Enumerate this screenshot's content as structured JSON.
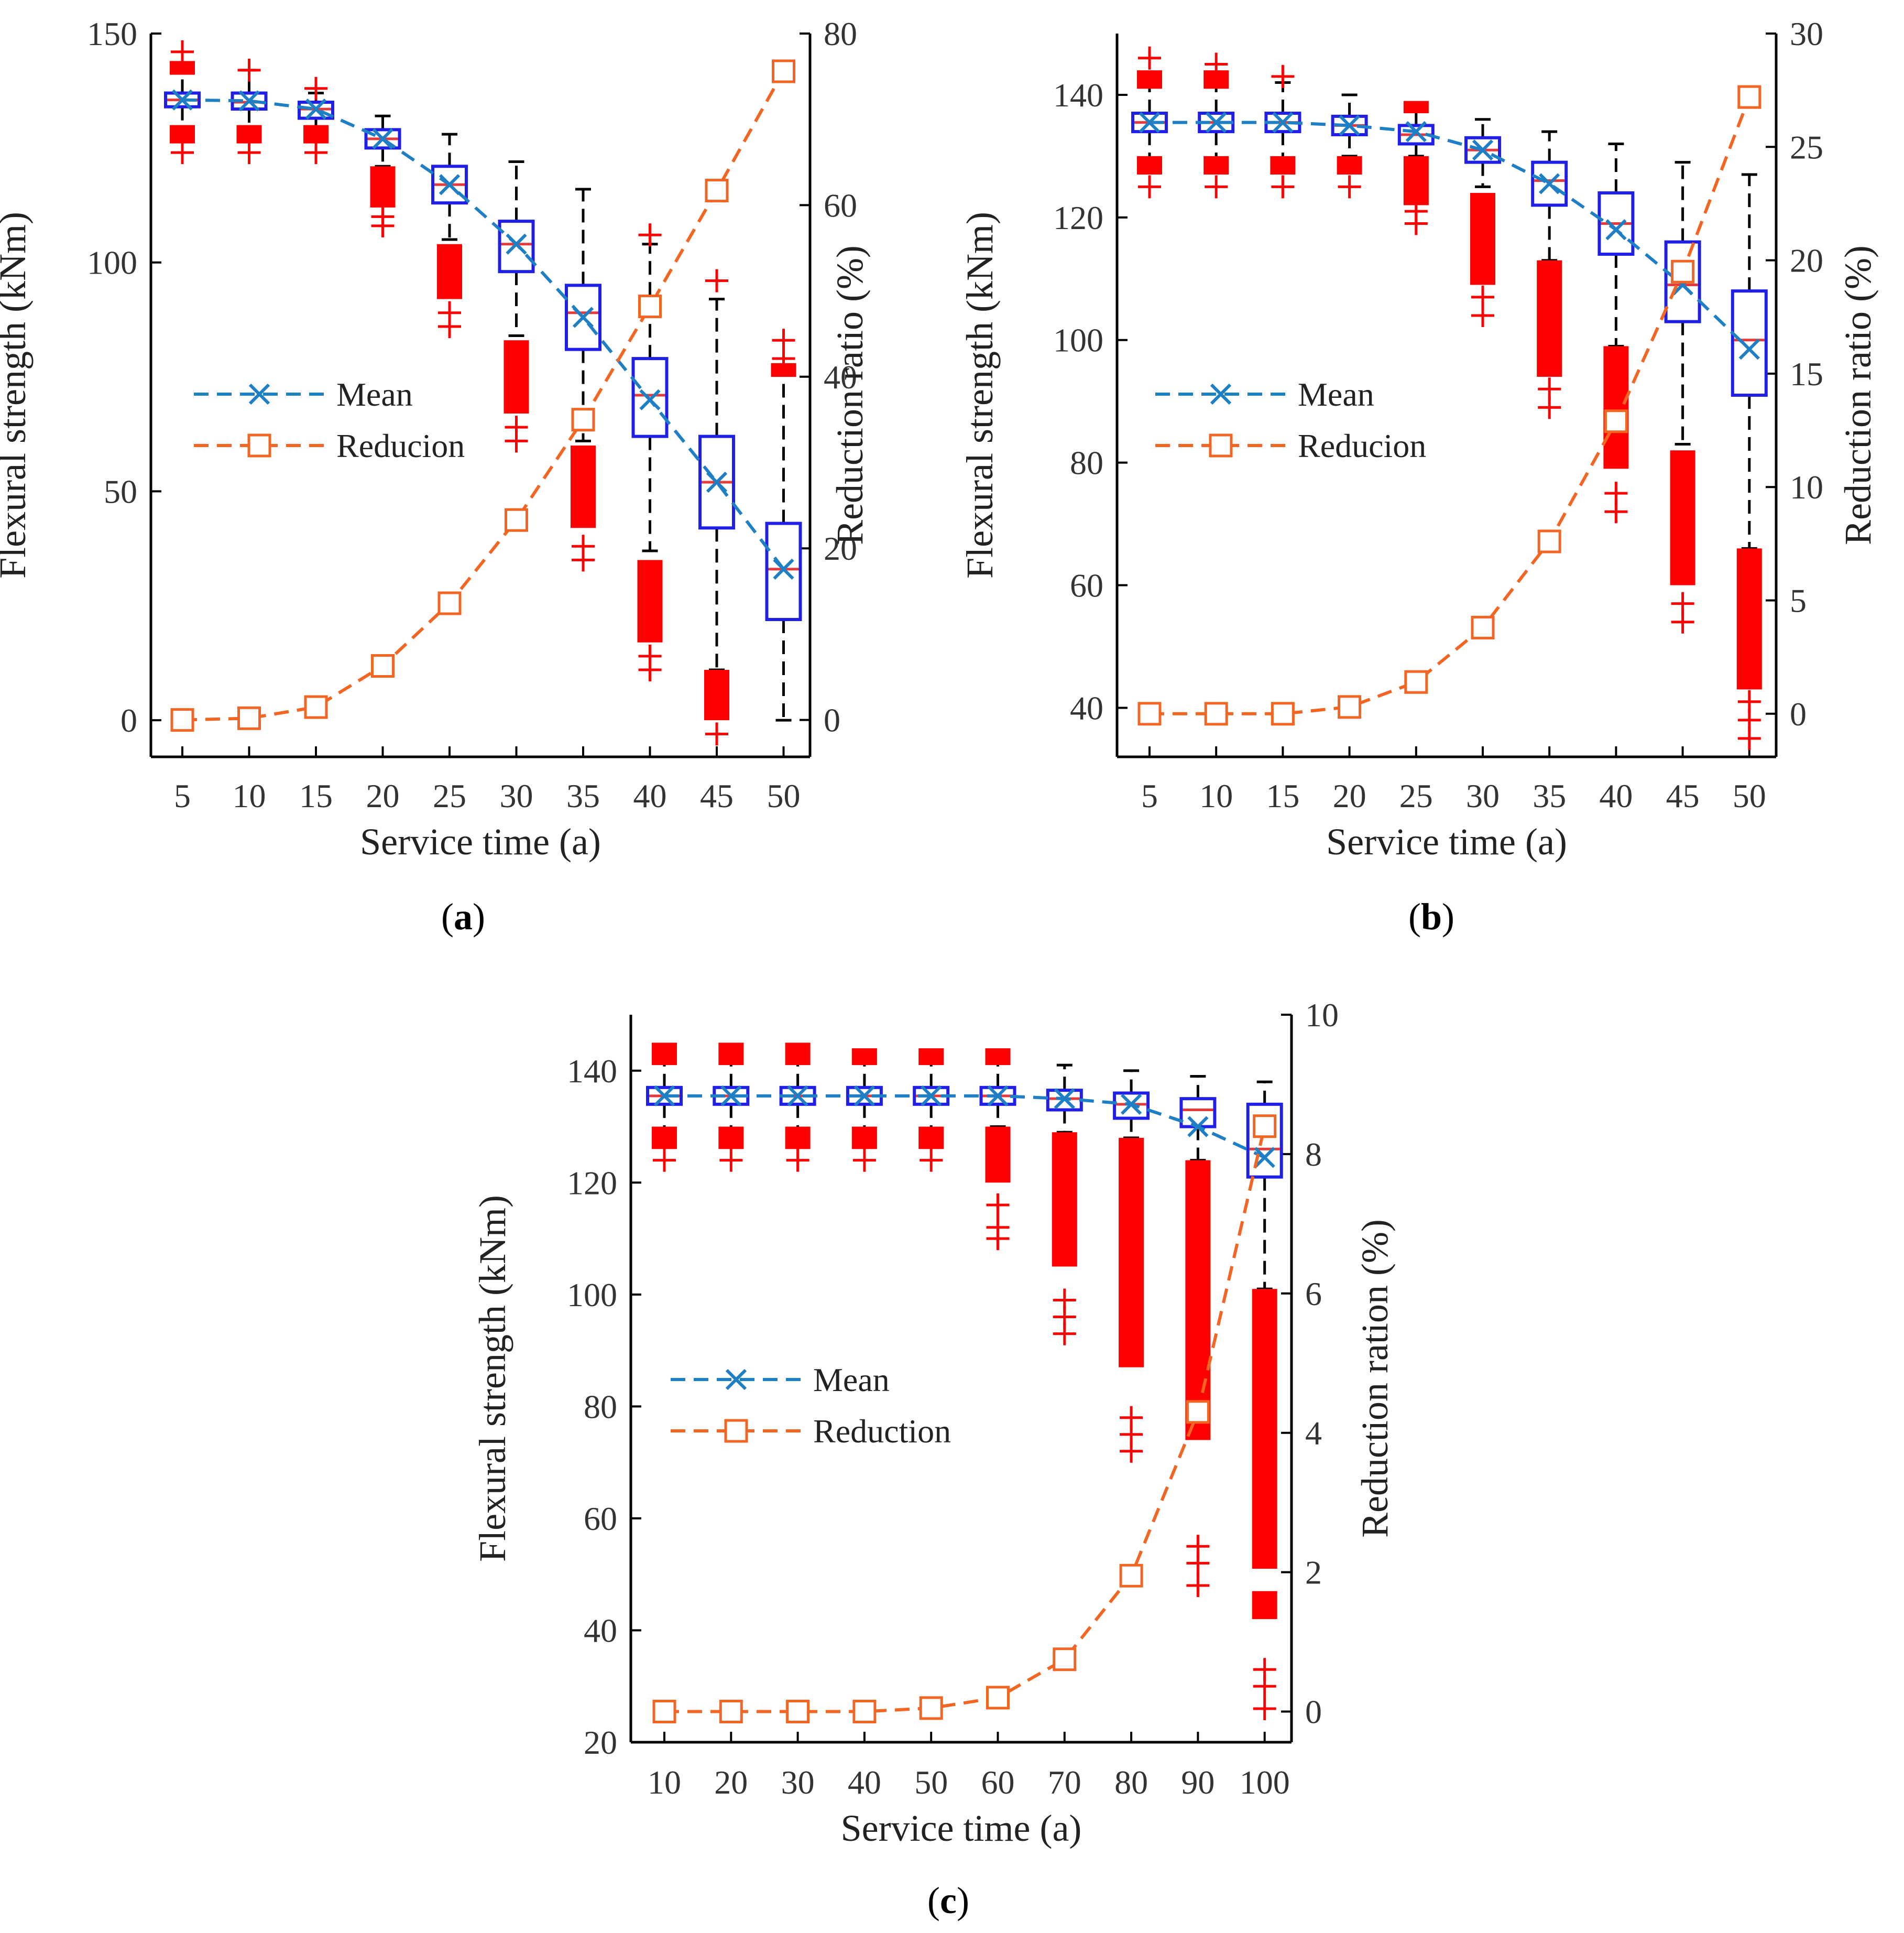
{
  "colors": {
    "mean": "#1f7fc4",
    "reduction": "#f26522",
    "box": "#1f1fe6",
    "median": "#e63a3a",
    "outlier": "#ff0000",
    "whisker": "#000000",
    "axis": "#000000"
  },
  "chart_data": [
    {
      "id": "a",
      "type": "box",
      "caption_open": "(",
      "caption_letter": "a",
      "caption_close": ")",
      "xlabel": "Service time (a)",
      "ylabel_left": "Flexural strength (kNm)",
      "ylabel_right": "Reduction ratio (%)",
      "categories": [
        "5",
        "10",
        "15",
        "20",
        "25",
        "30",
        "35",
        "40",
        "45",
        "50"
      ],
      "ylim_left": [
        -8,
        150
      ],
      "yticks_left": [
        "0",
        "50",
        "100",
        "150"
      ],
      "ylim_right": [
        -4.3,
        80
      ],
      "yticks_right": [
        "0",
        "20",
        "40",
        "60",
        "80"
      ],
      "legend": [
        {
          "series": "mean",
          "label": "Mean"
        },
        {
          "series": "reduction",
          "label": "Reducion"
        }
      ],
      "series": {
        "mean": [
          135.5,
          135.3,
          133.5,
          127,
          117,
          104,
          88,
          70,
          52,
          33
        ],
        "reduction": [
          0,
          0.2,
          1.5,
          6.3,
          13.6,
          23.3,
          35,
          48.2,
          61.7,
          75.6
        ]
      },
      "boxes": [
        {
          "q1": 134,
          "median": 135.5,
          "q3": 137,
          "wlow": 128,
          "whigh": 143,
          "outlier_bands": [
            [
              126,
              130
            ],
            [
              141,
              144
            ]
          ],
          "outliers": [
            124,
            146
          ]
        },
        {
          "q1": 133.5,
          "median": 135,
          "q3": 137,
          "wlow": 128,
          "whigh": 142,
          "outlier_bands": [
            [
              126,
              130
            ]
          ],
          "outliers": [
            124,
            142
          ]
        },
        {
          "q1": 131.5,
          "median": 133.5,
          "q3": 135,
          "wlow": 128,
          "whigh": 137,
          "outlier_bands": [
            [
              126,
              130
            ]
          ],
          "outliers": [
            124,
            138
          ]
        },
        {
          "q1": 125,
          "median": 127,
          "q3": 129,
          "wlow": 121,
          "whigh": 132,
          "outlier_bands": [
            [
              112,
              121
            ]
          ],
          "outliers": [
            108,
            110
          ]
        },
        {
          "q1": 113,
          "median": 117,
          "q3": 121,
          "wlow": 105,
          "whigh": 128,
          "outlier_bands": [
            [
              92,
              104
            ]
          ],
          "outliers": [
            86,
            89
          ]
        },
        {
          "q1": 98,
          "median": 104,
          "q3": 109,
          "wlow": 84,
          "whigh": 122,
          "outlier_bands": [
            [
              67,
              83
            ]
          ],
          "outliers": [
            61,
            64
          ]
        },
        {
          "q1": 81,
          "median": 89,
          "q3": 95,
          "wlow": 61,
          "whigh": 116,
          "outlier_bands": [
            [
              42,
              60
            ]
          ],
          "outliers": [
            35,
            38
          ]
        },
        {
          "q1": 62,
          "median": 71,
          "q3": 79,
          "wlow": 37,
          "whigh": 104,
          "outlier_bands": [
            [
              17,
              35
            ]
          ],
          "outliers": [
            11,
            14,
            106
          ]
        },
        {
          "q1": 42,
          "median": 52,
          "q3": 62,
          "wlow": 11,
          "whigh": 92,
          "outlier_bands": [
            [
              0,
              11
            ]
          ],
          "outliers": [
            -3,
            96
          ]
        },
        {
          "q1": 22,
          "median": 33,
          "q3": 43,
          "wlow": 0,
          "whigh": 76,
          "outlier_bands": [
            [
              75,
              78
            ]
          ],
          "outliers": [
            79,
            83
          ]
        }
      ]
    },
    {
      "id": "b",
      "type": "box",
      "caption_open": "(",
      "caption_letter": "b",
      "caption_close": ")",
      "xlabel": "Service time (a)",
      "ylabel_left": "Flexural strength (kNm)",
      "ylabel_right": "Reduction ratio (%)",
      "categories": [
        "5",
        "10",
        "15",
        "20",
        "25",
        "30",
        "35",
        "40",
        "45",
        "50"
      ],
      "ylim_left": [
        32,
        150
      ],
      "yticks_left": [
        "40",
        "60",
        "80",
        "100",
        "120",
        "140"
      ],
      "ylim_right": [
        -1.9,
        30
      ],
      "yticks_right": [
        "0",
        "5",
        "10",
        "15",
        "20",
        "25",
        "30"
      ],
      "legend": [
        {
          "series": "mean",
          "label": "Mean"
        },
        {
          "series": "reduction",
          "label": "Reducion"
        }
      ],
      "series": {
        "mean": [
          135.5,
          135.5,
          135.5,
          135,
          134,
          131,
          125.5,
          118,
          109,
          98.5
        ],
        "reduction": [
          0,
          0,
          0,
          0.3,
          1.4,
          3.8,
          7.6,
          12.9,
          19.5,
          27.2
        ]
      },
      "boxes": [
        {
          "q1": 134,
          "median": 135.5,
          "q3": 137,
          "wlow": 128,
          "whigh": 143,
          "outlier_bands": [
            [
              127,
              130
            ],
            [
              141,
              144
            ]
          ],
          "outliers": [
            125,
            146
          ]
        },
        {
          "q1": 134,
          "median": 135.5,
          "q3": 137,
          "wlow": 128,
          "whigh": 143,
          "outlier_bands": [
            [
              127,
              130
            ],
            [
              141,
              144
            ]
          ],
          "outliers": [
            125,
            145
          ]
        },
        {
          "q1": 134,
          "median": 135.5,
          "q3": 137,
          "wlow": 128,
          "whigh": 142,
          "outlier_bands": [
            [
              127,
              130
            ]
          ],
          "outliers": [
            125,
            143
          ]
        },
        {
          "q1": 133.5,
          "median": 135,
          "q3": 136.5,
          "wlow": 130,
          "whigh": 140,
          "outlier_bands": [
            [
              127,
              130
            ]
          ],
          "outliers": [
            125
          ]
        },
        {
          "q1": 132,
          "median": 133.5,
          "q3": 135,
          "wlow": 130,
          "whigh": 138,
          "outlier_bands": [
            [
              122,
              130
            ],
            [
              137,
              139
            ]
          ],
          "outliers": [
            119,
            121
          ]
        },
        {
          "q1": 129,
          "median": 131,
          "q3": 133,
          "wlow": 125,
          "whigh": 136,
          "outlier_bands": [
            [
              109,
              124
            ]
          ],
          "outliers": [
            104,
            107
          ]
        },
        {
          "q1": 122,
          "median": 126,
          "q3": 129,
          "wlow": 113,
          "whigh": 134,
          "outlier_bands": [
            [
              94,
              113
            ]
          ],
          "outliers": [
            89,
            92
          ]
        },
        {
          "q1": 114,
          "median": 119,
          "q3": 124,
          "wlow": 99,
          "whigh": 132,
          "outlier_bands": [
            [
              79,
              99
            ]
          ],
          "outliers": [
            72,
            75
          ]
        },
        {
          "q1": 103,
          "median": 109,
          "q3": 116,
          "wlow": 83,
          "whigh": 129,
          "outlier_bands": [
            [
              60,
              82
            ]
          ],
          "outliers": [
            54,
            57
          ]
        },
        {
          "q1": 91,
          "median": 100,
          "q3": 108,
          "wlow": 66,
          "whigh": 127,
          "outlier_bands": [
            [
              43,
              66
            ]
          ],
          "outliers": [
            35,
            38,
            41
          ]
        }
      ]
    },
    {
      "id": "c",
      "type": "box",
      "caption_open": "(",
      "caption_letter": "c",
      "caption_close": ")",
      "xlabel": "Service time (a)",
      "ylabel_left": "Flexural strength (kNm)",
      "ylabel_right": "Reduction ration (%)",
      "categories": [
        "10",
        "20",
        "30",
        "40",
        "50",
        "60",
        "70",
        "80",
        "90",
        "100"
      ],
      "ylim_left": [
        20,
        150
      ],
      "yticks_left": [
        "20",
        "40",
        "60",
        "80",
        "100",
        "120",
        "140"
      ],
      "ylim_right": [
        -0.44,
        10
      ],
      "yticks_right": [
        "0",
        "2",
        "4",
        "6",
        "8",
        "10"
      ],
      "legend": [
        {
          "series": "mean",
          "label": "Mean"
        },
        {
          "series": "reduction",
          "label": "Reduction"
        }
      ],
      "series": {
        "mean": [
          135.5,
          135.5,
          135.5,
          135.5,
          135.5,
          135.5,
          135,
          134,
          130,
          124.5
        ],
        "reduction": [
          0,
          0,
          0,
          0,
          0.05,
          0.2,
          0.75,
          1.95,
          4.3,
          8.4
        ]
      },
      "boxes": [
        {
          "q1": 134,
          "median": 135.5,
          "q3": 137,
          "wlow": 128,
          "whigh": 143,
          "outlier_bands": [
            [
              126,
              130
            ],
            [
              141,
              145
            ]
          ],
          "outliers": [
            124
          ]
        },
        {
          "q1": 134,
          "median": 135.5,
          "q3": 137,
          "wlow": 128,
          "whigh": 143,
          "outlier_bands": [
            [
              126,
              130
            ],
            [
              141,
              145
            ]
          ],
          "outliers": [
            124
          ]
        },
        {
          "q1": 134,
          "median": 135.5,
          "q3": 137,
          "wlow": 128,
          "whigh": 143,
          "outlier_bands": [
            [
              126,
              130
            ],
            [
              141,
              145
            ]
          ],
          "outliers": [
            124
          ]
        },
        {
          "q1": 134,
          "median": 135.5,
          "q3": 137,
          "wlow": 128,
          "whigh": 143,
          "outlier_bands": [
            [
              126,
              130
            ],
            [
              141,
              144
            ]
          ],
          "outliers": [
            124
          ]
        },
        {
          "q1": 134,
          "median": 135.5,
          "q3": 137,
          "wlow": 128,
          "whigh": 143,
          "outlier_bands": [
            [
              126,
              130
            ],
            [
              141,
              144
            ]
          ],
          "outliers": [
            124
          ]
        },
        {
          "q1": 134,
          "median": 135.5,
          "q3": 137,
          "wlow": 130,
          "whigh": 142,
          "outlier_bands": [
            [
              120,
              130
            ],
            [
              141,
              144
            ]
          ],
          "outliers": [
            110,
            112,
            116
          ]
        },
        {
          "q1": 133,
          "median": 135,
          "q3": 136.5,
          "wlow": 129,
          "whigh": 141,
          "outlier_bands": [
            [
              105,
              129
            ]
          ],
          "outliers": [
            93,
            96,
            99
          ]
        },
        {
          "q1": 131.5,
          "median": 134,
          "q3": 136,
          "wlow": 128,
          "whigh": 140,
          "outlier_bands": [
            [
              87,
              128
            ]
          ],
          "outliers": [
            72,
            75,
            78
          ]
        },
        {
          "q1": 130,
          "median": 133,
          "q3": 135,
          "wlow": 124,
          "whigh": 139,
          "outlier_bands": [
            [
              74,
              124
            ]
          ],
          "outliers": [
            48,
            52,
            55
          ]
        },
        {
          "q1": 121,
          "median": 126,
          "q3": 134,
          "wlow": 101,
          "whigh": 138,
          "outlier_bands": [
            [
              51,
              101
            ],
            [
              42,
              47
            ]
          ],
          "outliers": [
            26,
            30,
            33
          ]
        }
      ]
    }
  ]
}
